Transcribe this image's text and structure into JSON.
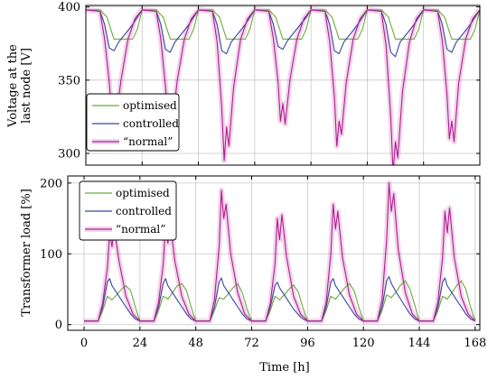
{
  "chart_data": [
    {
      "type": "line",
      "ylabel_line1": "Voltage at the",
      "ylabel_line2": "last node [V]",
      "xlabel": "",
      "xlim": [
        0,
        168
      ],
      "ylim": [
        292,
        401
      ],
      "yticks": [
        300,
        350,
        400
      ],
      "xticks": [
        0,
        24,
        48,
        72,
        96,
        120,
        144,
        168
      ],
      "grid": true,
      "legend_position": "lower-left",
      "series": [
        {
          "name": "optimised",
          "color": "#6aaa3a",
          "shade": false,
          "x": [
            0,
            6,
            9,
            12,
            16,
            20,
            22,
            24,
            30,
            33,
            36,
            40,
            44,
            46,
            48,
            54,
            57,
            60,
            64,
            68,
            70,
            72,
            78,
            81,
            84,
            88,
            92,
            94,
            96,
            102,
            105,
            108,
            112,
            116,
            118,
            120,
            126,
            129,
            132,
            136,
            140,
            142,
            144,
            150,
            153,
            156,
            160,
            164,
            166,
            168
          ],
          "y": [
            398,
            398,
            393,
            378,
            378,
            378,
            385,
            398,
            398,
            393,
            378,
            378,
            378,
            385,
            398,
            398,
            393,
            378,
            378,
            378,
            385,
            398,
            398,
            393,
            378,
            378,
            378,
            385,
            398,
            398,
            393,
            378,
            378,
            378,
            385,
            398,
            398,
            393,
            378,
            378,
            378,
            385,
            398,
            398,
            393,
            378,
            378,
            378,
            385,
            398
          ]
        },
        {
          "name": "controlled",
          "color": "#3a46a0",
          "shade": false,
          "x": [
            0,
            6,
            8,
            10,
            12,
            14,
            16,
            18,
            20,
            22,
            24,
            30,
            32,
            34,
            36,
            38,
            40,
            42,
            44,
            46,
            48,
            54,
            56,
            58,
            60,
            62,
            64,
            66,
            68,
            70,
            72,
            78,
            80,
            82,
            84,
            86,
            88,
            90,
            92,
            94,
            96,
            102,
            104,
            106,
            108,
            110,
            112,
            114,
            116,
            118,
            120,
            126,
            128,
            130,
            132,
            134,
            136,
            138,
            140,
            142,
            144,
            150,
            152,
            154,
            156,
            158,
            160,
            162,
            164,
            166,
            168
          ],
          "y": [
            398,
            397,
            388,
            372,
            370,
            376,
            380,
            384,
            388,
            393,
            398,
            397,
            388,
            371,
            369,
            376,
            380,
            384,
            388,
            393,
            398,
            397,
            388,
            370,
            368,
            376,
            380,
            384,
            388,
            393,
            398,
            397,
            388,
            373,
            371,
            377,
            381,
            385,
            389,
            393,
            398,
            397,
            388,
            370,
            368,
            376,
            380,
            384,
            388,
            393,
            398,
            397,
            388,
            369,
            366,
            376,
            380,
            384,
            388,
            393,
            398,
            397,
            388,
            371,
            369,
            376,
            380,
            384,
            388,
            393,
            398
          ]
        },
        {
          "name": "“normal”",
          "color": "#b01c8e",
          "shade": true,
          "x": [
            0,
            6,
            8,
            10,
            11,
            12,
            13,
            15,
            18,
            21,
            24,
            30,
            32,
            34,
            35,
            36,
            37,
            39,
            42,
            45,
            48,
            54,
            56,
            58,
            59,
            60,
            61,
            63,
            66,
            69,
            72,
            78,
            80,
            82,
            83,
            84,
            85,
            87,
            90,
            93,
            96,
            102,
            104,
            106,
            107,
            108,
            109,
            111,
            114,
            117,
            120,
            126,
            128,
            130,
            131,
            132,
            133,
            135,
            138,
            141,
            144,
            150,
            152,
            154,
            155,
            156,
            157,
            159,
            162,
            165,
            168
          ],
          "y": [
            398,
            397,
            378,
            348,
            328,
            338,
            325,
            350,
            378,
            392,
            398,
            397,
            378,
            345,
            325,
            336,
            322,
            350,
            378,
            392,
            398,
            397,
            376,
            330,
            295,
            318,
            305,
            345,
            378,
            392,
            398,
            397,
            378,
            348,
            322,
            334,
            320,
            350,
            378,
            392,
            398,
            397,
            376,
            338,
            305,
            322,
            313,
            348,
            378,
            392,
            398,
            397,
            374,
            325,
            287,
            308,
            297,
            342,
            376,
            392,
            398,
            397,
            377,
            340,
            310,
            322,
            308,
            348,
            378,
            392,
            398
          ]
        }
      ]
    },
    {
      "type": "line",
      "ylabel": "Transformer load [%]",
      "xlabel": "Time [h]",
      "xlim": [
        -7,
        170
      ],
      "ylim": [
        -8,
        210
      ],
      "yticks": [
        0,
        100,
        200
      ],
      "xticks": [
        0,
        24,
        48,
        72,
        96,
        120,
        144,
        168
      ],
      "grid": true,
      "legend_position": "top-left",
      "series": [
        {
          "name": "optimised",
          "color": "#6aaa3a",
          "shade": false,
          "x": [
            0,
            6,
            8,
            10,
            12,
            14,
            16,
            18,
            20,
            22,
            24,
            30,
            32,
            34,
            36,
            38,
            40,
            42,
            44,
            46,
            48,
            54,
            56,
            58,
            60,
            62,
            64,
            66,
            68,
            70,
            72,
            78,
            80,
            82,
            84,
            86,
            88,
            90,
            92,
            94,
            96,
            102,
            104,
            106,
            108,
            110,
            112,
            114,
            116,
            118,
            120,
            126,
            128,
            130,
            132,
            134,
            136,
            138,
            140,
            142,
            144,
            150,
            152,
            154,
            156,
            158,
            160,
            162,
            164,
            166,
            168
          ],
          "y": [
            5,
            5,
            20,
            40,
            35,
            42,
            50,
            55,
            48,
            25,
            5,
            5,
            20,
            40,
            36,
            45,
            55,
            58,
            48,
            25,
            5,
            5,
            20,
            38,
            36,
            44,
            52,
            58,
            45,
            22,
            5,
            5,
            20,
            40,
            35,
            42,
            50,
            56,
            46,
            24,
            5,
            5,
            20,
            40,
            36,
            44,
            52,
            58,
            48,
            25,
            5,
            5,
            20,
            42,
            38,
            46,
            56,
            62,
            50,
            28,
            5,
            5,
            20,
            40,
            36,
            45,
            55,
            62,
            50,
            25,
            5
          ]
        },
        {
          "name": "controlled",
          "color": "#3a46a0",
          "shade": false,
          "x": [
            0,
            6,
            8,
            10,
            11,
            12,
            14,
            16,
            18,
            20,
            22,
            24,
            30,
            32,
            34,
            35,
            36,
            38,
            40,
            42,
            44,
            46,
            48,
            54,
            56,
            58,
            59,
            60,
            62,
            64,
            66,
            68,
            70,
            72,
            78,
            80,
            82,
            83,
            84,
            86,
            88,
            90,
            92,
            94,
            96,
            102,
            104,
            106,
            107,
            108,
            110,
            112,
            114,
            116,
            118,
            120,
            126,
            128,
            130,
            131,
            132,
            134,
            136,
            138,
            140,
            142,
            144,
            150,
            152,
            154,
            155,
            156,
            158,
            160,
            162,
            164,
            166,
            168
          ],
          "y": [
            5,
            5,
            25,
            60,
            65,
            55,
            45,
            35,
            25,
            15,
            8,
            5,
            5,
            25,
            58,
            65,
            55,
            45,
            35,
            25,
            15,
            8,
            5,
            5,
            25,
            60,
            66,
            55,
            45,
            35,
            25,
            15,
            8,
            5,
            5,
            25,
            55,
            60,
            52,
            42,
            32,
            22,
            14,
            8,
            5,
            5,
            25,
            60,
            65,
            55,
            45,
            35,
            25,
            15,
            8,
            5,
            5,
            25,
            62,
            68,
            58,
            46,
            36,
            25,
            15,
            8,
            5,
            5,
            25,
            60,
            66,
            55,
            45,
            35,
            25,
            15,
            8,
            5
          ]
        },
        {
          "name": "“normal”",
          "color": "#b01c8e",
          "shade": true,
          "x": [
            0,
            6,
            8,
            10,
            11,
            12,
            13,
            15,
            18,
            21,
            24,
            30,
            32,
            34,
            35,
            36,
            37,
            39,
            42,
            45,
            48,
            54,
            56,
            58,
            59,
            60,
            61,
            63,
            66,
            69,
            72,
            78,
            80,
            82,
            83,
            84,
            85,
            87,
            90,
            93,
            96,
            102,
            104,
            106,
            107,
            108,
            109,
            111,
            114,
            117,
            120,
            126,
            128,
            130,
            131,
            132,
            133,
            135,
            138,
            141,
            144,
            150,
            152,
            154,
            155,
            156,
            157,
            159,
            162,
            165,
            168
          ],
          "y": [
            5,
            5,
            30,
            80,
            130,
            110,
            135,
            90,
            40,
            15,
            5,
            5,
            32,
            85,
            140,
            115,
            145,
            90,
            40,
            15,
            5,
            5,
            35,
            110,
            190,
            150,
            170,
            100,
            45,
            15,
            5,
            5,
            30,
            85,
            150,
            120,
            155,
            95,
            40,
            15,
            5,
            5,
            32,
            100,
            170,
            135,
            160,
            95,
            42,
            15,
            5,
            5,
            35,
            120,
            200,
            160,
            185,
            105,
            45,
            15,
            5,
            5,
            32,
            95,
            160,
            130,
            165,
            95,
            40,
            15,
            5
          ]
        }
      ]
    }
  ]
}
